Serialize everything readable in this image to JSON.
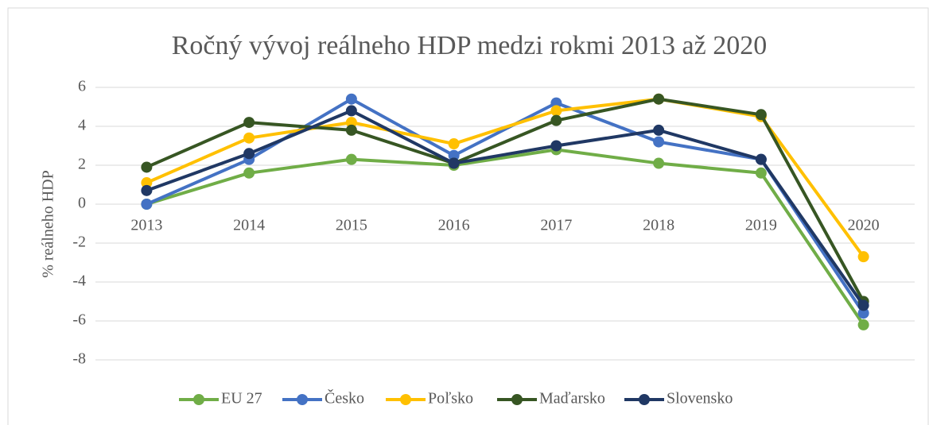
{
  "chart_data": {
    "type": "line",
    "title": "Ročný vývoj reálneho HDP medzi rokmi 2013 až 2020",
    "y_label": "% reálneho HDP",
    "categories": [
      "2013",
      "2014",
      "2015",
      "2016",
      "2017",
      "2018",
      "2019",
      "2020"
    ],
    "series": [
      {
        "name": "EU 27",
        "color": "#70ad47",
        "values": [
          0,
          1.6,
          2.3,
          2.0,
          2.8,
          2.1,
          1.6,
          -6.2
        ]
      },
      {
        "name": "Česko",
        "color": "#4472c4",
        "values": [
          0,
          2.3,
          5.4,
          2.5,
          5.2,
          3.2,
          2.3,
          -5.6
        ]
      },
      {
        "name": "Poľsko",
        "color": "#ffc000",
        "values": [
          1.1,
          3.4,
          4.2,
          3.1,
          4.8,
          5.4,
          4.5,
          -2.7
        ]
      },
      {
        "name": "Maďarsko",
        "color": "#375623",
        "values": [
          1.9,
          4.2,
          3.8,
          2.1,
          4.3,
          5.4,
          4.6,
          -5.0
        ]
      },
      {
        "name": "Slovensko",
        "color": "#203864",
        "values": [
          0.7,
          2.6,
          4.8,
          2.1,
          3.0,
          3.8,
          2.3,
          -5.2
        ]
      }
    ],
    "ylim": [
      -8,
      6
    ],
    "yticks": [
      -8,
      -6,
      -4,
      -2,
      0,
      2,
      4,
      6
    ],
    "grid": true,
    "legend": "bottom"
  }
}
